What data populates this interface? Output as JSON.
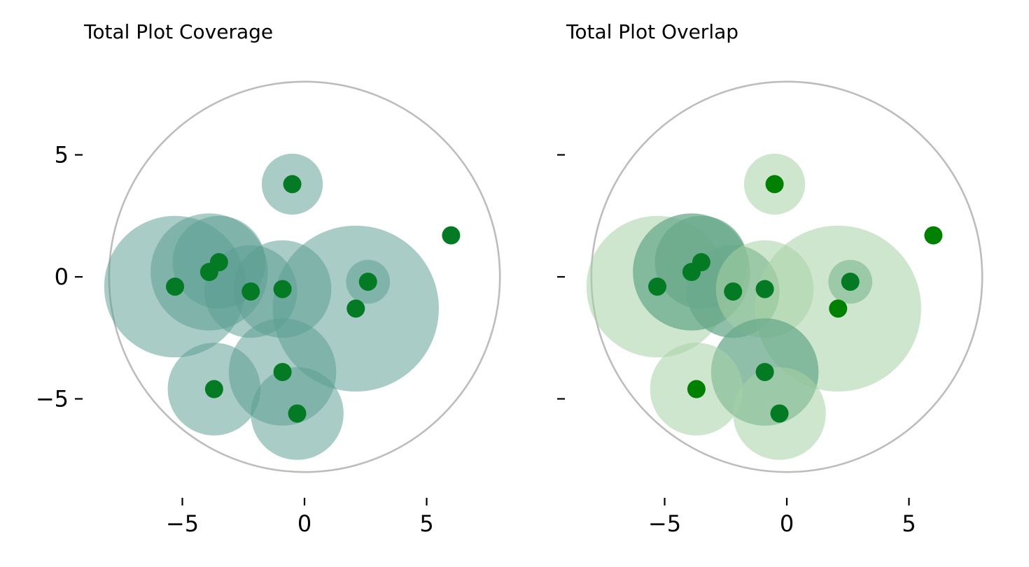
{
  "chart_data": [
    {
      "type": "scatter",
      "title": "Total Plot Coverage",
      "xlabel": "",
      "ylabel": "",
      "xlim": [
        -8.2,
        8.2
      ],
      "ylim": [
        -8.2,
        8.2
      ],
      "x_ticks": [
        -5,
        0,
        5
      ],
      "x_tick_labels": [
        "−5",
        "0",
        "5"
      ],
      "y_ticks": [
        5,
        0,
        -5
      ],
      "y_tick_labels": [
        "5",
        "0",
        "−5"
      ],
      "show_y_tick_labels": true,
      "grid": false,
      "boundary": {
        "cx": 0,
        "cy": 0,
        "r": 8.0,
        "color": "#bdbdbd"
      },
      "point_color": "#047a24",
      "points": [
        {
          "x": -0.5,
          "y": 3.8,
          "r": 1.25,
          "shade": "cover"
        },
        {
          "x": 6.0,
          "y": 1.7,
          "r": 0,
          "shade": "cover"
        },
        {
          "x": -5.3,
          "y": -0.4,
          "r": 2.9,
          "shade": "cover"
        },
        {
          "x": -3.9,
          "y": 0.2,
          "r": 2.4,
          "shade": "cover"
        },
        {
          "x": -3.5,
          "y": 0.6,
          "r": 1.9,
          "shade": "cover"
        },
        {
          "x": -2.2,
          "y": -0.6,
          "r": 1.9,
          "shade": "cover"
        },
        {
          "x": -0.9,
          "y": -0.5,
          "r": 2.0,
          "shade": "cover"
        },
        {
          "x": 2.6,
          "y": -0.2,
          "r": 0.9,
          "shade": "cover"
        },
        {
          "x": 2.1,
          "y": -1.3,
          "r": 3.4,
          "shade": "cover"
        },
        {
          "x": -0.9,
          "y": -3.9,
          "r": 2.2,
          "shade": "cover"
        },
        {
          "x": -3.7,
          "y": -4.6,
          "r": 1.9,
          "shade": "cover"
        },
        {
          "x": -0.3,
          "y": -5.6,
          "r": 1.9,
          "shade": "cover"
        }
      ]
    },
    {
      "type": "scatter",
      "title": "Total Plot Overlap",
      "xlabel": "",
      "ylabel": "",
      "xlim": [
        -8.2,
        8.2
      ],
      "ylim": [
        -8.2,
        8.2
      ],
      "x_ticks": [
        -5,
        0,
        5
      ],
      "x_tick_labels": [
        "−5",
        "0",
        "5"
      ],
      "y_ticks": [
        5,
        0,
        -5
      ],
      "y_tick_labels": [
        "",
        "",
        ""
      ],
      "show_y_tick_labels": false,
      "grid": false,
      "boundary": {
        "cx": 0,
        "cy": 0,
        "r": 8.0,
        "color": "#bdbdbd"
      },
      "point_color_overlap": "#047a24",
      "point_color_single": "#008000",
      "points": [
        {
          "x": -0.5,
          "y": 3.8,
          "r": 1.25,
          "shade": "light"
        },
        {
          "x": 6.0,
          "y": 1.7,
          "r": 0,
          "shade": "light"
        },
        {
          "x": -5.3,
          "y": -0.4,
          "r": 2.9,
          "shade": "light"
        },
        {
          "x": -3.9,
          "y": 0.2,
          "r": 2.4,
          "shade": "dark"
        },
        {
          "x": -3.5,
          "y": 0.6,
          "r": 1.9,
          "shade": "dark"
        },
        {
          "x": -2.2,
          "y": -0.6,
          "r": 1.9,
          "shade": "dark"
        },
        {
          "x": -0.9,
          "y": -0.5,
          "r": 2.0,
          "shade": "light"
        },
        {
          "x": 2.6,
          "y": -0.2,
          "r": 0.9,
          "shade": "dark"
        },
        {
          "x": 2.1,
          "y": -1.3,
          "r": 3.4,
          "shade": "light"
        },
        {
          "x": -0.9,
          "y": -3.9,
          "r": 2.2,
          "shade": "dark"
        },
        {
          "x": -3.7,
          "y": -4.6,
          "r": 1.9,
          "shade": "light"
        },
        {
          "x": -0.3,
          "y": -5.6,
          "r": 1.9,
          "shade": "light"
        }
      ]
    }
  ],
  "colors": {
    "cover_fill": "#5b9e91",
    "cover_opacity": 0.52,
    "light_fill": "#a7d2a6",
    "light_opacity": 0.55,
    "dark_fill": "#6aa98b",
    "dark_opacity": 0.75,
    "point_dark": "#047a24",
    "point_pure": "#008000"
  }
}
